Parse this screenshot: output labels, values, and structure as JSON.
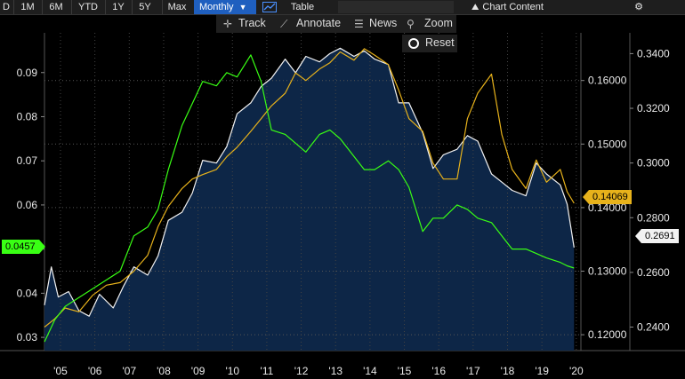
{
  "toolbar": {
    "periods": [
      "D",
      "1M",
      "6M",
      "YTD",
      "1Y",
      "5Y",
      "Max"
    ],
    "frequency": "Monthly",
    "table_label": "Table",
    "chart_content_label": "Chart Content"
  },
  "subbar": {
    "track_label": "Track",
    "annotate_label": "Annotate",
    "news_label": "News",
    "zoom_label": "Zoom",
    "reset_label": "Reset"
  },
  "colors": {
    "white_series": "#f2f2f2",
    "yellow_series": "#e7b21b",
    "green_series": "#39ff14",
    "fill": "#0d2647",
    "background": "#000000"
  },
  "chart_data": {
    "type": "line",
    "x_labels": [
      "'05",
      "'06",
      "'07",
      "'08",
      "'09",
      "'10",
      "'11",
      "'12",
      "'13",
      "'14",
      "'15",
      "'16",
      "'17",
      "'18",
      "'19",
      "'20"
    ],
    "x_range": [
      2005.0,
      2020.6
    ],
    "left_axis": {
      "ticks": [
        "0.09",
        "0.08",
        "0.07",
        "0.06",
        "0.05",
        "0.04",
        "0.03"
      ],
      "range": [
        0.027,
        0.099
      ]
    },
    "middle_axis": {
      "ticks": [
        "0.16000",
        "0.15000",
        "0.14000",
        "0.13000",
        "0.12000"
      ],
      "range": [
        0.1175,
        0.1675
      ]
    },
    "right_axis": {
      "ticks": [
        "0.3400",
        "0.3200",
        "0.3000",
        "0.2800",
        "0.2600",
        "0.2400"
      ],
      "range": [
        0.2314,
        0.3476
      ]
    },
    "last_values": {
      "green": "0.0457",
      "yellow": "0.14069",
      "white": "0.2691"
    },
    "series": [
      {
        "name": "white",
        "axis": "right",
        "filled": true,
        "x": [
          2005.0,
          2005.2,
          2005.4,
          2005.7,
          2006.0,
          2006.3,
          2006.6,
          2007.0,
          2007.3,
          2007.6,
          2008.0,
          2008.3,
          2008.6,
          2009.0,
          2009.3,
          2009.6,
          2010.0,
          2010.3,
          2010.6,
          2011.0,
          2011.3,
          2011.6,
          2012.0,
          2012.3,
          2012.6,
          2013.0,
          2013.3,
          2013.6,
          2014.0,
          2014.3,
          2014.6,
          2015.0,
          2015.3,
          2015.6,
          2016.0,
          2016.3,
          2016.6,
          2017.0,
          2017.3,
          2017.6,
          2018.0,
          2018.3,
          2018.6,
          2019.0,
          2019.3,
          2019.6,
          2020.0,
          2020.2,
          2020.4
        ],
        "values": [
          0.248,
          0.262,
          0.251,
          0.253,
          0.246,
          0.244,
          0.252,
          0.247,
          0.255,
          0.262,
          0.259,
          0.266,
          0.279,
          0.282,
          0.289,
          0.301,
          0.3,
          0.306,
          0.318,
          0.322,
          0.328,
          0.331,
          0.338,
          0.333,
          0.339,
          0.337,
          0.34,
          0.342,
          0.339,
          0.341,
          0.338,
          0.336,
          0.322,
          0.322,
          0.311,
          0.298,
          0.303,
          0.305,
          0.31,
          0.308,
          0.296,
          0.293,
          0.29,
          0.288,
          0.3,
          0.296,
          0.292,
          0.285,
          0.2691
        ]
      },
      {
        "name": "yellow",
        "axis": "middle",
        "x": [
          2005.0,
          2005.3,
          2005.6,
          2006.0,
          2006.4,
          2006.8,
          2007.2,
          2007.6,
          2008.0,
          2008.3,
          2008.6,
          2009.0,
          2009.3,
          2009.6,
          2010.0,
          2010.3,
          2010.6,
          2011.0,
          2011.3,
          2011.6,
          2012.0,
          2012.3,
          2012.6,
          2013.0,
          2013.3,
          2013.6,
          2014.0,
          2014.3,
          2014.6,
          2015.0,
          2015.3,
          2015.6,
          2016.0,
          2016.3,
          2016.6,
          2017.0,
          2017.3,
          2017.6,
          2018.0,
          2018.3,
          2018.6,
          2019.0,
          2019.3,
          2019.6,
          2020.0,
          2020.2,
          2020.4
        ],
        "values": [
          0.1212,
          0.1225,
          0.1242,
          0.1236,
          0.1262,
          0.1278,
          0.1282,
          0.13,
          0.1325,
          0.137,
          0.1402,
          0.143,
          0.1445,
          0.1452,
          0.146,
          0.148,
          0.1495,
          0.152,
          0.154,
          0.156,
          0.158,
          0.1612,
          0.16,
          0.1618,
          0.1628,
          0.1645,
          0.1632,
          0.165,
          0.164,
          0.1625,
          0.1585,
          0.154,
          0.152,
          0.147,
          0.1445,
          0.1445,
          0.154,
          0.158,
          0.161,
          0.1515,
          0.146,
          0.143,
          0.1475,
          0.144,
          0.146,
          0.1425,
          0.14069
        ]
      },
      {
        "name": "green",
        "axis": "left",
        "x": [
          2005.0,
          2005.3,
          2005.6,
          2006.0,
          2006.4,
          2006.8,
          2007.2,
          2007.6,
          2008.0,
          2008.3,
          2008.6,
          2009.0,
          2009.3,
          2009.6,
          2010.0,
          2010.3,
          2010.6,
          2011.0,
          2011.3,
          2011.6,
          2012.0,
          2012.3,
          2012.6,
          2013.0,
          2013.3,
          2013.6,
          2014.0,
          2014.3,
          2014.6,
          2015.0,
          2015.3,
          2015.6,
          2016.0,
          2016.3,
          2016.6,
          2017.0,
          2017.3,
          2017.6,
          2018.0,
          2018.3,
          2018.6,
          2019.0,
          2019.3,
          2019.6,
          2020.0,
          2020.2,
          2020.4
        ],
        "values": [
          0.029,
          0.034,
          0.037,
          0.039,
          0.041,
          0.043,
          0.045,
          0.053,
          0.055,
          0.059,
          0.068,
          0.078,
          0.083,
          0.088,
          0.087,
          0.09,
          0.089,
          0.094,
          0.088,
          0.077,
          0.076,
          0.074,
          0.072,
          0.076,
          0.077,
          0.075,
          0.071,
          0.068,
          0.068,
          0.07,
          0.068,
          0.064,
          0.054,
          0.057,
          0.057,
          0.06,
          0.059,
          0.057,
          0.056,
          0.053,
          0.05,
          0.05,
          0.049,
          0.048,
          0.047,
          0.0462,
          0.0457
        ]
      }
    ]
  }
}
